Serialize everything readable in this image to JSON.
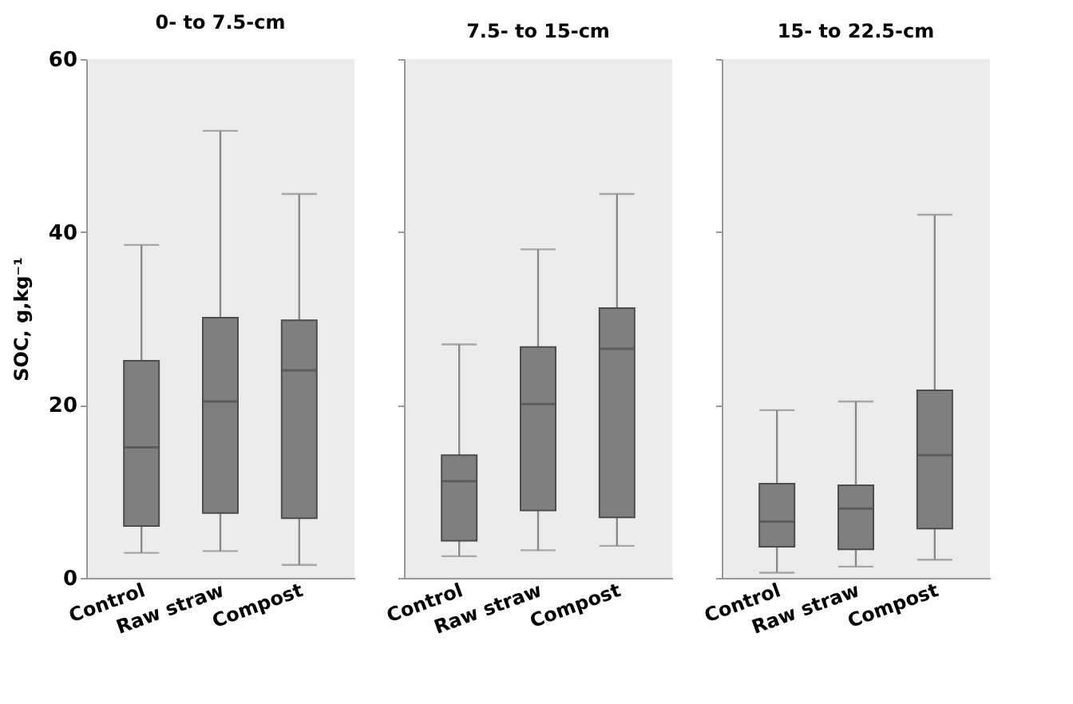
{
  "chart_data": [
    {
      "type": "box",
      "title": "0- to 7.5-cm",
      "ylabel": "SOC, g,kg⁻¹",
      "categories": [
        "Control",
        "Raw straw",
        "Compost"
      ],
      "ylim": [
        0,
        60
      ],
      "yticks": [
        0,
        20,
        40,
        60
      ],
      "series": [
        {
          "color": "#7f7f7f",
          "boxes": [
            {
              "low": 2.9,
              "q1": 6.0,
              "median": 15.1,
              "q3": 25.1,
              "high": 38.5
            },
            {
              "low": 3.1,
              "q1": 7.5,
              "median": 20.4,
              "q3": 30.1,
              "high": 51.7
            },
            {
              "low": 1.5,
              "q1": 6.9,
              "median": 24.0,
              "q3": 29.8,
              "high": 44.4
            }
          ]
        }
      ]
    },
    {
      "type": "box",
      "title": "7.5- to 15-cm",
      "categories": [
        "Control",
        "Raw straw",
        "Compost"
      ],
      "ylim": [
        0,
        60
      ],
      "yticks": [
        0,
        20,
        40,
        60
      ],
      "tick_labels": "x",
      "series": [
        {
          "color": "#7f7f7f",
          "boxes": [
            {
              "low": 2.5,
              "q1": 4.3,
              "median": 11.2,
              "q3": 14.2,
              "high": 27.0
            },
            {
              "low": 3.2,
              "q1": 7.8,
              "median": 20.1,
              "q3": 26.7,
              "high": 38.0
            },
            {
              "low": 3.7,
              "q1": 7.0,
              "median": 26.5,
              "q3": 31.2,
              "high": 44.4
            }
          ]
        }
      ]
    },
    {
      "type": "box",
      "title": "15- to 22.5-cm",
      "categories": [
        "Control",
        "Raw straw",
        "Compost"
      ],
      "ylim": [
        0,
        60
      ],
      "yticks": [
        0,
        20,
        40,
        60
      ],
      "tick_labels": "x",
      "series": [
        {
          "color": "#7f7f7f",
          "boxes": [
            {
              "low": 0.6,
              "q1": 3.6,
              "median": 6.5,
              "q3": 10.9,
              "high": 19.4
            },
            {
              "low": 1.3,
              "q1": 3.3,
              "median": 8.0,
              "q3": 10.7,
              "high": 20.4
            },
            {
              "low": 2.1,
              "q1": 5.7,
              "median": 14.2,
              "q3": 21.7,
              "high": 42.0
            }
          ]
        }
      ]
    }
  ]
}
